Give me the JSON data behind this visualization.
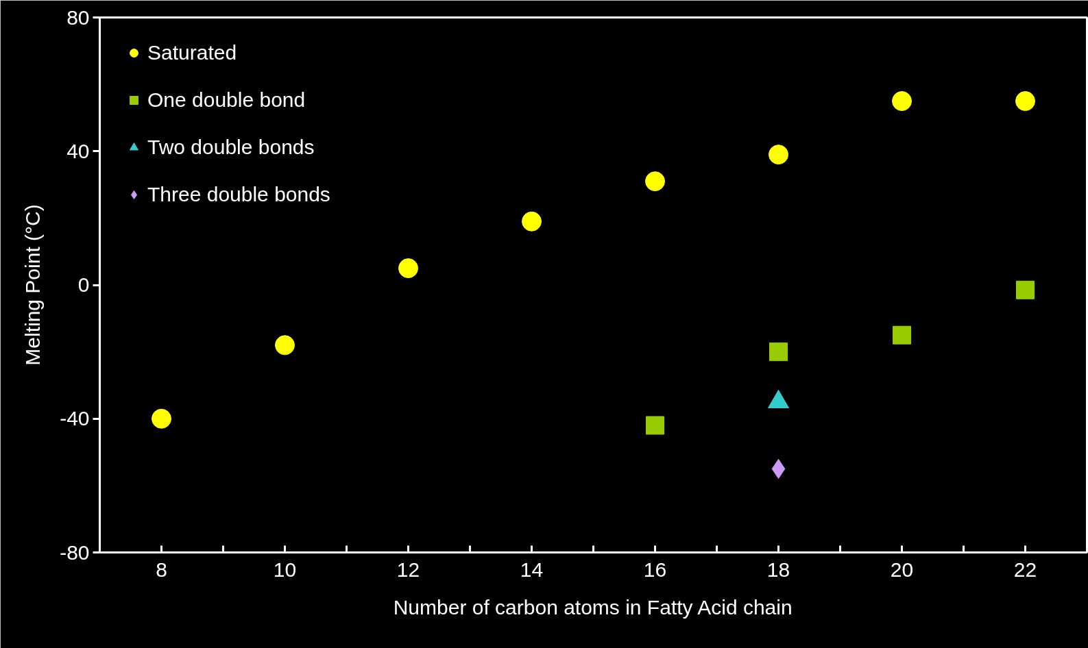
{
  "chart_data": {
    "type": "scatter",
    "xlabel": "Number of carbon atoms in Fatty Acid chain",
    "ylabel": "Melting Point (°C)",
    "xlim": [
      7,
      23
    ],
    "ylim": [
      -80,
      80
    ],
    "xticks": [
      {
        "value": 7,
        "label": null
      },
      8,
      {
        "value": 9,
        "label": null
      },
      10,
      {
        "value": 11,
        "label": null
      },
      12,
      {
        "value": 13,
        "label": null
      },
      14,
      {
        "value": 15,
        "label": null
      },
      16,
      {
        "value": 17,
        "label": null
      },
      18,
      {
        "value": 19,
        "label": null
      },
      20,
      {
        "value": 21,
        "label": null
      },
      22
    ],
    "yticks": [
      -80,
      -40,
      0,
      40,
      80
    ],
    "grid": false,
    "legend": "top left",
    "series": [
      {
        "name": "Saturated",
        "color": "#ffff00",
        "marker": "circle",
        "x": [
          8,
          10,
          12,
          14,
          16,
          18,
          20,
          22
        ],
        "values": [
          -40,
          -18,
          5,
          19,
          31,
          39,
          55,
          55
        ]
      },
      {
        "name": "One double bond",
        "color": "#99cc00",
        "marker": "square",
        "x": [
          16,
          18,
          20,
          22
        ],
        "values": [
          -42,
          -20,
          -15,
          -1.5
        ]
      },
      {
        "name": "Two double bonds",
        "color": "#33cccc",
        "marker": "triangle",
        "x": [
          18
        ],
        "values": [
          -35
        ]
      },
      {
        "name": "Three double bonds",
        "color": "#cc99ff",
        "marker": "diamond",
        "x": [
          18
        ],
        "values": [
          -55
        ]
      }
    ]
  }
}
